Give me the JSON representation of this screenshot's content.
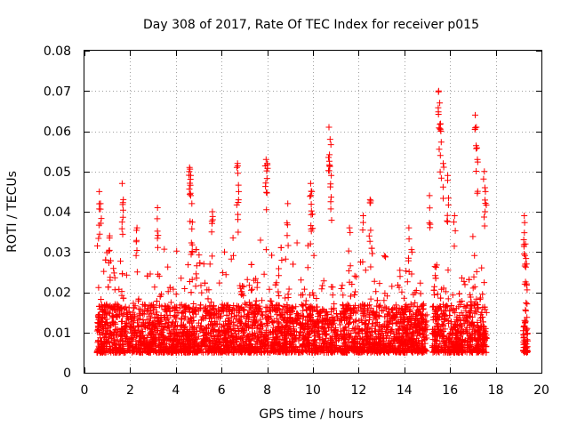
{
  "chart_data": {
    "type": "scatter",
    "title": "Day 308 of 2017, Rate Of TEC Index for receiver p015",
    "xlabel": "GPS time / hours",
    "ylabel": "ROTI / TECUs",
    "xlim": [
      0,
      20
    ],
    "ylim": [
      0,
      0.08
    ],
    "x_ticks": [
      0,
      2,
      4,
      6,
      8,
      10,
      12,
      14,
      16,
      18,
      20
    ],
    "y_ticks": [
      0,
      0.01,
      0.02,
      0.03,
      0.04,
      0.05,
      0.06,
      0.07,
      0.08
    ],
    "x_tick_labels": [
      "0",
      "2",
      "4",
      "6",
      "8",
      "10",
      "12",
      "14",
      "16",
      "18",
      "20"
    ],
    "y_tick_labels": [
      "0",
      "0.01",
      "0.02",
      "0.03",
      "0.04",
      "0.05",
      "0.06",
      "0.07",
      "0.08"
    ],
    "grid": true,
    "marker": "+",
    "marker_color": "#ff0000",
    "series": [
      {
        "name": "ROTI",
        "data_windows": [
          {
            "x_start": 0.55,
            "x_end": 17.6,
            "y_base": 0.005,
            "y_spread": 0.012
          },
          {
            "x_start": 19.2,
            "x_end": 19.4,
            "y_base": 0.005,
            "y_spread": 0.008
          }
        ],
        "spikes": [
          {
            "x": 0.65,
            "y": 0.045
          },
          {
            "x": 0.7,
            "y": 0.042
          },
          {
            "x": 1.1,
            "y": 0.034
          },
          {
            "x": 1.65,
            "y": 0.047
          },
          {
            "x": 1.7,
            "y": 0.043
          },
          {
            "x": 2.3,
            "y": 0.036
          },
          {
            "x": 3.2,
            "y": 0.041
          },
          {
            "x": 4.6,
            "y": 0.051
          },
          {
            "x": 4.65,
            "y": 0.049
          },
          {
            "x": 4.7,
            "y": 0.042
          },
          {
            "x": 5.6,
            "y": 0.04
          },
          {
            "x": 6.7,
            "y": 0.052
          },
          {
            "x": 6.75,
            "y": 0.045
          },
          {
            "x": 7.95,
            "y": 0.053
          },
          {
            "x": 8.0,
            "y": 0.052
          },
          {
            "x": 8.9,
            "y": 0.042
          },
          {
            "x": 9.9,
            "y": 0.047
          },
          {
            "x": 9.95,
            "y": 0.045
          },
          {
            "x": 10.7,
            "y": 0.061
          },
          {
            "x": 10.75,
            "y": 0.058
          },
          {
            "x": 10.8,
            "y": 0.049
          },
          {
            "x": 11.6,
            "y": 0.036
          },
          {
            "x": 12.2,
            "y": 0.039
          },
          {
            "x": 12.5,
            "y": 0.043
          },
          {
            "x": 14.2,
            "y": 0.036
          },
          {
            "x": 15.1,
            "y": 0.044
          },
          {
            "x": 15.5,
            "y": 0.07
          },
          {
            "x": 15.55,
            "y": 0.067
          },
          {
            "x": 15.6,
            "y": 0.06
          },
          {
            "x": 15.7,
            "y": 0.052
          },
          {
            "x": 15.9,
            "y": 0.049
          },
          {
            "x": 16.2,
            "y": 0.039
          },
          {
            "x": 17.1,
            "y": 0.064
          },
          {
            "x": 17.15,
            "y": 0.061
          },
          {
            "x": 17.2,
            "y": 0.053
          },
          {
            "x": 17.5,
            "y": 0.05
          },
          {
            "x": 17.55,
            "y": 0.045
          },
          {
            "x": 19.25,
            "y": 0.039
          },
          {
            "x": 19.3,
            "y": 0.032
          },
          {
            "x": 19.35,
            "y": 0.027
          }
        ]
      }
    ]
  }
}
